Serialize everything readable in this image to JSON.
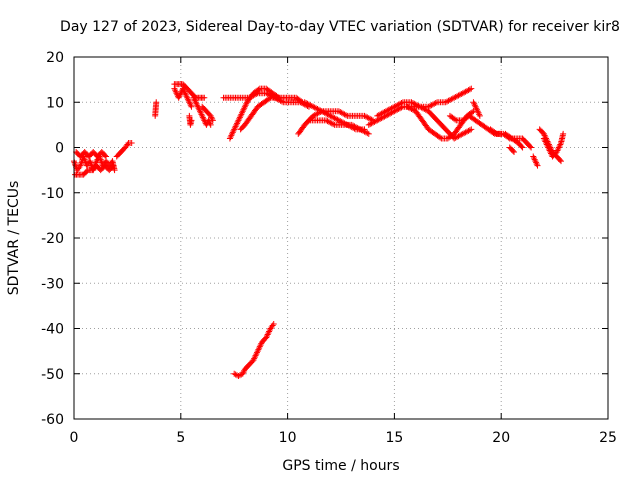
{
  "chart_data": {
    "type": "scatter",
    "title": "Day 127 of 2023, Sidereal Day-to-day VTEC variation (SDTVAR) for receiver kir8",
    "xlabel": "GPS time / hours",
    "ylabel": "SDTVAR / TECUs",
    "xlim": [
      0,
      25
    ],
    "ylim": [
      -60,
      20
    ],
    "xticks": [
      0,
      5,
      10,
      15,
      20,
      25
    ],
    "yticks": [
      -60,
      -50,
      -40,
      -30,
      -20,
      -10,
      0,
      10,
      20
    ],
    "grid": true,
    "marker": "+",
    "color": "#ff0000",
    "series": [
      {
        "name": "SDTVAR",
        "segments": [
          [
            [
              0.0,
              -3
            ],
            [
              0.15,
              -5
            ],
            [
              0.3,
              -4
            ],
            [
              0.45,
              -2
            ],
            [
              0.6,
              -4
            ],
            [
              0.75,
              -3
            ],
            [
              0.9,
              -5
            ],
            [
              1.05,
              -3
            ],
            [
              1.2,
              -2
            ],
            [
              1.35,
              -4
            ],
            [
              1.5,
              -3
            ],
            [
              1.65,
              -4
            ],
            [
              1.8,
              -3
            ],
            [
              1.9,
              -5
            ]
          ],
          [
            [
              0.05,
              -6
            ],
            [
              0.25,
              -6
            ],
            [
              0.45,
              -6
            ],
            [
              0.65,
              -5
            ],
            [
              0.85,
              -5
            ],
            [
              1.05,
              -4
            ],
            [
              1.25,
              -5
            ],
            [
              1.45,
              -4
            ],
            [
              1.65,
              -5
            ],
            [
              1.85,
              -4
            ]
          ],
          [
            [
              0.1,
              -1
            ],
            [
              0.3,
              -2
            ],
            [
              0.5,
              -1
            ],
            [
              0.7,
              -2
            ],
            [
              0.9,
              -1
            ],
            [
              1.1,
              -2
            ],
            [
              1.3,
              -1
            ],
            [
              1.5,
              -2
            ]
          ],
          [
            [
              2.0,
              -2
            ],
            [
              2.2,
              -1
            ],
            [
              2.4,
              0
            ],
            [
              2.55,
              1
            ],
            [
              2.7,
              1
            ]
          ],
          [
            [
              3.8,
              7
            ],
            [
              3.85,
              10
            ]
          ],
          [
            [
              4.7,
              13
            ],
            [
              4.8,
              12
            ],
            [
              4.9,
              11
            ],
            [
              5.0,
              12
            ],
            [
              5.1,
              13
            ],
            [
              5.2,
              12
            ],
            [
              5.3,
              11
            ],
            [
              5.4,
              10
            ],
            [
              5.5,
              9
            ]
          ],
          [
            [
              4.7,
              14
            ],
            [
              4.9,
              14
            ],
            [
              5.1,
              14
            ],
            [
              5.3,
              13
            ],
            [
              5.5,
              12
            ],
            [
              5.7,
              11
            ],
            [
              5.9,
              11
            ],
            [
              6.1,
              11
            ]
          ],
          [
            [
              5.4,
              7
            ],
            [
              5.45,
              5
            ],
            [
              5.5,
              6
            ]
          ],
          [
            [
              5.6,
              11
            ],
            [
              5.7,
              10
            ],
            [
              5.8,
              9
            ],
            [
              5.9,
              8
            ],
            [
              6.0,
              7
            ],
            [
              6.1,
              6
            ],
            [
              6.2,
              5
            ],
            [
              6.3,
              6
            ],
            [
              6.4,
              5
            ]
          ],
          [
            [
              6.0,
              9
            ],
            [
              6.2,
              8
            ],
            [
              6.4,
              7
            ],
            [
              6.5,
              6
            ]
          ],
          [
            [
              7.0,
              11
            ],
            [
              7.4,
              11
            ],
            [
              7.8,
              11
            ],
            [
              8.2,
              11
            ],
            [
              8.6,
              12
            ],
            [
              9.0,
              12
            ],
            [
              9.4,
              11
            ],
            [
              9.8,
              10
            ],
            [
              10.2,
              10
            ],
            [
              10.6,
              10
            ],
            [
              11.0,
              9
            ]
          ],
          [
            [
              7.3,
              2
            ],
            [
              7.5,
              4
            ],
            [
              7.7,
              6
            ],
            [
              7.9,
              8
            ],
            [
              8.1,
              10
            ],
            [
              8.4,
              12
            ],
            [
              8.7,
              13
            ],
            [
              9.0,
              13
            ],
            [
              9.3,
              12
            ],
            [
              9.6,
              11
            ]
          ],
          [
            [
              7.8,
              4
            ],
            [
              8.0,
              5
            ],
            [
              8.3,
              7
            ],
            [
              8.6,
              9
            ],
            [
              8.9,
              10
            ],
            [
              9.2,
              11
            ],
            [
              9.5,
              11
            ],
            [
              9.8,
              11
            ],
            [
              10.1,
              11
            ],
            [
              10.4,
              11
            ],
            [
              10.7,
              10
            ]
          ],
          [
            [
              10.5,
              3
            ],
            [
              10.8,
              5
            ],
            [
              11.2,
              7
            ],
            [
              11.6,
              8
            ],
            [
              12.0,
              7
            ],
            [
              12.4,
              6
            ],
            [
              12.8,
              5
            ],
            [
              13.2,
              4
            ],
            [
              13.6,
              4
            ]
          ],
          [
            [
              10.8,
              10
            ],
            [
              11.2,
              9
            ],
            [
              11.6,
              8
            ],
            [
              12.0,
              8
            ],
            [
              12.4,
              8
            ],
            [
              12.8,
              7
            ],
            [
              13.2,
              7
            ],
            [
              13.6,
              7
            ],
            [
              14.0,
              6
            ]
          ],
          [
            [
              11.0,
              6
            ],
            [
              11.4,
              6
            ],
            [
              11.8,
              6
            ],
            [
              12.2,
              5
            ],
            [
              12.6,
              5
            ],
            [
              13.0,
              5
            ],
            [
              13.4,
              4
            ],
            [
              13.8,
              3
            ]
          ],
          [
            [
              13.8,
              5
            ],
            [
              14.2,
              6
            ],
            [
              14.6,
              7
            ],
            [
              15.0,
              8
            ],
            [
              15.4,
              9
            ],
            [
              15.8,
              9
            ],
            [
              16.2,
              9
            ],
            [
              16.6,
              9
            ],
            [
              17.0,
              10
            ],
            [
              17.4,
              10
            ],
            [
              17.8,
              11
            ],
            [
              18.2,
              12
            ],
            [
              18.6,
              13
            ]
          ],
          [
            [
              14.2,
              7
            ],
            [
              14.6,
              8
            ],
            [
              15.0,
              9
            ],
            [
              15.4,
              10
            ],
            [
              15.8,
              10
            ],
            [
              16.2,
              9
            ],
            [
              16.6,
              8
            ],
            [
              17.0,
              6
            ],
            [
              17.4,
              4
            ],
            [
              17.8,
              2
            ],
            [
              18.2,
              3
            ],
            [
              18.6,
              4
            ]
          ],
          [
            [
              15.6,
              9
            ],
            [
              16.0,
              8
            ],
            [
              16.3,
              6
            ],
            [
              16.6,
              4
            ],
            [
              16.9,
              3
            ],
            [
              17.2,
              2
            ],
            [
              17.5,
              2
            ],
            [
              17.8,
              3
            ],
            [
              18.1,
              5
            ],
            [
              18.4,
              7
            ],
            [
              18.7,
              8
            ]
          ],
          [
            [
              17.6,
              7
            ],
            [
              17.9,
              6
            ],
            [
              18.2,
              6
            ],
            [
              18.5,
              7
            ],
            [
              18.8,
              6
            ],
            [
              19.1,
              5
            ],
            [
              19.4,
              4
            ],
            [
              19.7,
              3
            ],
            [
              20.0,
              3
            ]
          ],
          [
            [
              18.7,
              10
            ],
            [
              18.8,
              9
            ],
            [
              18.9,
              8
            ],
            [
              19.0,
              7
            ]
          ],
          [
            [
              19.5,
              4
            ],
            [
              19.8,
              3
            ],
            [
              20.1,
              3
            ],
            [
              20.4,
              2
            ],
            [
              20.7,
              2
            ],
            [
              21.0,
              2
            ],
            [
              21.2,
              1
            ],
            [
              21.4,
              0
            ]
          ],
          [
            [
              20.2,
              3
            ],
            [
              20.5,
              2
            ],
            [
              20.8,
              1
            ],
            [
              21.0,
              0
            ]
          ],
          [
            [
              20.4,
              0
            ],
            [
              20.6,
              -1
            ]
          ],
          [
            [
              21.5,
              -2
            ],
            [
              21.6,
              -3
            ],
            [
              21.7,
              -4
            ]
          ],
          [
            [
              21.8,
              4
            ],
            [
              22.0,
              3
            ],
            [
              22.2,
              1
            ],
            [
              22.4,
              -1
            ],
            [
              22.6,
              -2
            ],
            [
              22.8,
              -3
            ]
          ],
          [
            [
              22.0,
              2
            ],
            [
              22.2,
              0
            ],
            [
              22.4,
              -2
            ],
            [
              22.6,
              -1
            ],
            [
              22.8,
              1
            ],
            [
              22.9,
              3
            ]
          ],
          [
            [
              7.5,
              -50
            ],
            [
              7.7,
              -50.5
            ],
            [
              7.9,
              -50
            ],
            [
              8.0,
              -49
            ],
            [
              8.2,
              -48
            ],
            [
              8.4,
              -47
            ],
            [
              8.6,
              -45
            ],
            [
              8.8,
              -43
            ],
            [
              9.0,
              -42
            ],
            [
              9.2,
              -40
            ],
            [
              9.35,
              -39
            ]
          ]
        ]
      }
    ]
  }
}
